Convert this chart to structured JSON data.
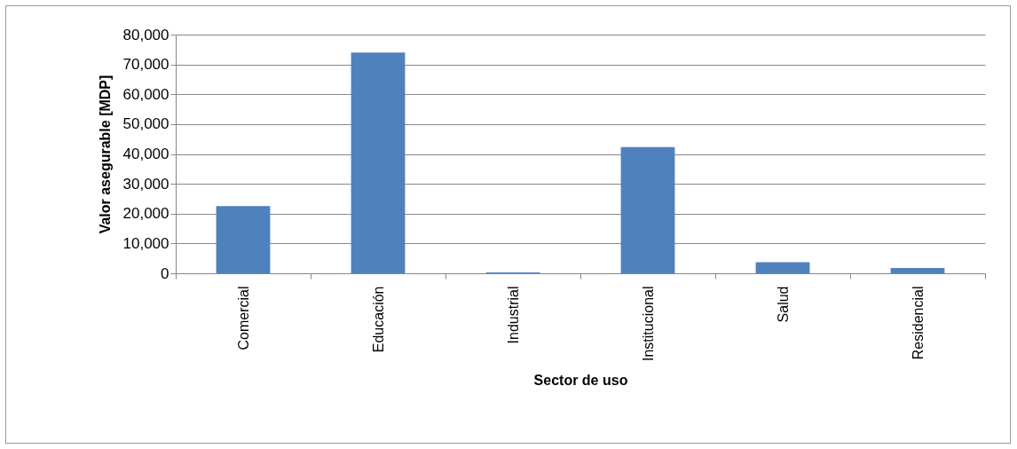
{
  "chart_data": {
    "type": "bar",
    "xlabel": "Sector de uso",
    "ylabel": "Valor asegurable [MDP]",
    "categories": [
      "Comercial",
      "Educación",
      "Industrial",
      "Institucional",
      "Salud",
      "Residencial"
    ],
    "values": [
      22500,
      74000,
      300,
      42300,
      3700,
      1800
    ],
    "color": "#4f81bd",
    "ylim": [
      0,
      80000
    ],
    "yticks": [
      0,
      {
        "value": 10000,
        "label": "10,000"
      },
      {
        "value": 20000,
        "label": "20,000"
      },
      {
        "value": 30000,
        "label": "30,000"
      },
      {
        "value": 40000,
        "label": "40,000"
      },
      {
        "value": 50000,
        "label": "50,000"
      },
      {
        "value": 60000,
        "label": "60,000"
      },
      {
        "value": 70000,
        "label": "70,000"
      },
      {
        "value": 80000,
        "label": "80,000"
      }
    ],
    "grid": "y"
  }
}
